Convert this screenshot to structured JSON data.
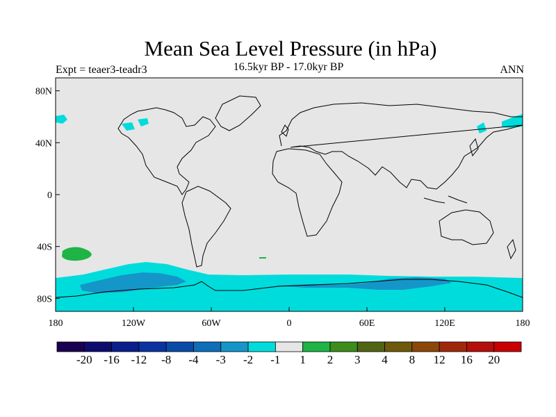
{
  "figure": {
    "title": "Mean Sea Level Pressure (in hPa)",
    "subtitle": "16.5kyr BP - 17.0kyr BP",
    "left_label": "Expt = teaer3-teadr3",
    "right_label": "ANN"
  },
  "map": {
    "projection": "cylindrical-equidistant",
    "lon_range": [
      -180,
      180
    ],
    "lat_range": [
      -90,
      90
    ],
    "lon_ticks": [
      {
        "value": -180,
        "label": "180"
      },
      {
        "value": -120,
        "label": "120W"
      },
      {
        "value": -60,
        "label": "60W"
      },
      {
        "value": 0,
        "label": "0"
      },
      {
        "value": 60,
        "label": "60E"
      },
      {
        "value": 120,
        "label": "120E"
      },
      {
        "value": 180,
        "label": "180"
      }
    ],
    "lat_ticks": [
      {
        "value": 80,
        "label": "80N"
      },
      {
        "value": 40,
        "label": "40N"
      },
      {
        "value": 0,
        "label": "0"
      },
      {
        "value": -40,
        "label": "40S"
      },
      {
        "value": -80,
        "label": "80S"
      }
    ],
    "background_color": "#e6e6e6",
    "coastline_color": "#000000"
  },
  "colorbar": {
    "colors": [
      "#1a0050",
      "#0d0c6e",
      "#0a1e8c",
      "#0a32a0",
      "#0a4ba8",
      "#0f6eb8",
      "#1596c8",
      "#00dcdc",
      "#e6e6e6",
      "#1eb446",
      "#3c8c1e",
      "#506414",
      "#6e5a0a",
      "#8c460a",
      "#a0280a",
      "#b40f0a",
      "#c80000"
    ],
    "labels": [
      "-20",
      "-16",
      "-12",
      "-8",
      "-4",
      "-3",
      "-2",
      "-1",
      "1",
      "2",
      "3",
      "4",
      "8",
      "12",
      "16",
      "20"
    ]
  }
}
